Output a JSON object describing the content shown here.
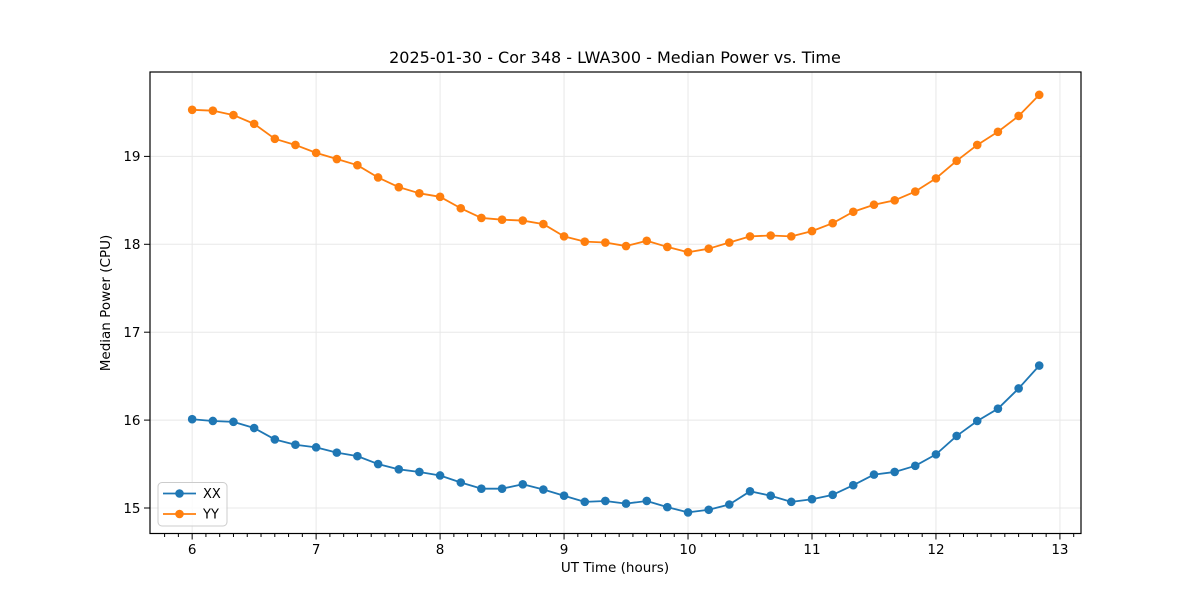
{
  "chart_data": {
    "type": "line",
    "title": "2025-01-30 - Cor 348 - LWA300 - Median Power vs. Time",
    "xlabel": "UT Time (hours)",
    "ylabel": "Median Power (CPU)",
    "xlim": [
      5.66,
      13.17
    ],
    "ylim": [
      14.71,
      19.96
    ],
    "x_ticks": [
      6,
      7,
      8,
      9,
      10,
      11,
      12,
      13
    ],
    "y_ticks": [
      15,
      16,
      17,
      18,
      19
    ],
    "x_minor_subdivisions": 9,
    "grid": true,
    "legend_position": "lower left",
    "legend_entries": [
      "XX",
      "YY"
    ],
    "colors": {
      "xx_series": "#1f77b4",
      "yy_series": "#ff7f0e",
      "grid": "#e8e8e8",
      "text": "#000000"
    },
    "x": [
      6.0,
      6.167,
      6.333,
      6.5,
      6.667,
      6.833,
      7.0,
      7.167,
      7.333,
      7.5,
      7.667,
      7.833,
      8.0,
      8.167,
      8.333,
      8.5,
      8.667,
      8.833,
      9.0,
      9.167,
      9.333,
      9.5,
      9.667,
      9.833,
      10.0,
      10.167,
      10.333,
      10.5,
      10.667,
      10.833,
      11.0,
      11.167,
      11.333,
      11.5,
      11.667,
      11.833,
      12.0,
      12.167,
      12.333,
      12.5,
      12.667,
      12.833
    ],
    "series": [
      {
        "name": "XX",
        "color": "#1f77b4",
        "values": [
          16.01,
          15.99,
          15.98,
          15.91,
          15.78,
          15.72,
          15.69,
          15.63,
          15.59,
          15.5,
          15.44,
          15.41,
          15.37,
          15.29,
          15.22,
          15.22,
          15.27,
          15.21,
          15.14,
          15.07,
          15.08,
          15.05,
          15.08,
          15.01,
          14.95,
          14.98,
          15.04,
          15.19,
          15.14,
          15.07,
          15.1,
          15.15,
          15.26,
          15.38,
          15.41,
          15.48,
          15.61,
          15.82,
          15.99,
          16.13,
          16.36,
          16.62
        ]
      },
      {
        "name": "YY",
        "color": "#ff7f0e",
        "values": [
          19.53,
          19.52,
          19.47,
          19.37,
          19.2,
          19.13,
          19.04,
          18.97,
          18.9,
          18.76,
          18.65,
          18.58,
          18.54,
          18.41,
          18.3,
          18.28,
          18.27,
          18.23,
          18.09,
          18.03,
          18.02,
          17.98,
          18.04,
          17.97,
          17.91,
          17.95,
          18.02,
          18.09,
          18.1,
          18.09,
          18.15,
          18.24,
          18.37,
          18.45,
          18.5,
          18.6,
          18.75,
          18.95,
          19.13,
          19.28,
          19.46,
          19.7
        ]
      }
    ]
  }
}
